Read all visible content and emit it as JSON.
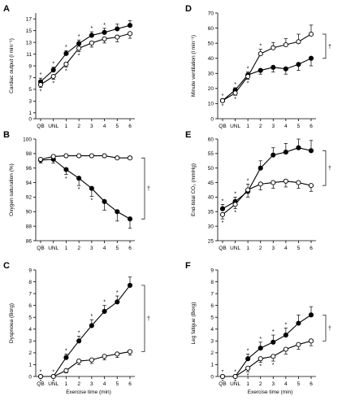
{
  "chart_data": [
    {
      "type": "line",
      "panel": "A",
      "ylabel": "Cardiac output (l min⁻¹)",
      "xlabel": "",
      "ylim": [
        0,
        18
      ],
      "yticks": [
        0,
        1,
        3,
        5,
        7,
        9,
        11,
        13,
        15,
        17
      ],
      "categories": [
        "QB",
        "UNL",
        "1",
        "2",
        "3",
        "4",
        "5",
        "6"
      ],
      "series": [
        {
          "marker": "filled",
          "values": [
            6.3,
            8.3,
            11.1,
            12.8,
            14.2,
            14.7,
            15.3,
            15.9
          ],
          "errors": [
            0.6,
            0.5,
            0.5,
            0.6,
            0.6,
            0.7,
            0.8,
            0.8
          ]
        },
        {
          "marker": "open",
          "values": [
            5.8,
            7.2,
            9.3,
            12.0,
            12.9,
            13.6,
            13.9,
            14.5
          ],
          "errors": [
            0.5,
            0.5,
            0.5,
            0.6,
            0.7,
            0.7,
            0.8,
            0.8
          ]
        }
      ],
      "sig_above": [
        "*",
        "*",
        "*",
        "*",
        "*",
        "*",
        "",
        ""
      ],
      "sig_below": [
        "*",
        "*",
        "*",
        "*",
        "",
        "",
        "",
        ""
      ],
      "dagger": ""
    },
    {
      "type": "line",
      "panel": "B",
      "ylabel": "Oxygen saturation (%)",
      "xlabel": "",
      "ylim": [
        86,
        100
      ],
      "yticks": [
        86,
        88,
        90,
        92,
        94,
        96,
        98,
        100
      ],
      "categories": [
        "QB",
        "UNL",
        "1",
        "2",
        "3",
        "4",
        "5",
        "6"
      ],
      "series": [
        {
          "marker": "filled",
          "values": [
            97.1,
            97.2,
            95.8,
            94.6,
            93.2,
            91.4,
            90.0,
            89.0
          ],
          "errors": [
            0.4,
            0.5,
            0.7,
            1.0,
            1.1,
            1.2,
            1.3,
            1.3
          ]
        },
        {
          "marker": "open",
          "values": [
            97.2,
            97.6,
            97.7,
            97.7,
            97.7,
            97.7,
            97.4,
            97.4
          ],
          "errors": [
            0.2,
            0.2,
            0.2,
            0.2,
            0.2,
            0.2,
            0.2,
            0.2
          ]
        }
      ],
      "sig_above": [
        "",
        "",
        "",
        "",
        "",
        "",
        "",
        ""
      ],
      "sig_below": [
        "",
        "",
        "*",
        "*",
        "*",
        "",
        "",
        ""
      ],
      "dagger": "†"
    },
    {
      "type": "line",
      "panel": "C",
      "ylabel": "Dyspnoea (Borg)",
      "xlabel": "Exercise time (min)",
      "ylim": [
        0,
        9
      ],
      "yticks": [
        0,
        1,
        2,
        3,
        4,
        5,
        6,
        7,
        8,
        9
      ],
      "categories": [
        "QB",
        "UNL",
        "1",
        "2",
        "3",
        "4",
        "5",
        "6"
      ],
      "series": [
        {
          "marker": "filled",
          "values": [
            0.0,
            0.0,
            1.6,
            3.0,
            4.3,
            5.5,
            6.3,
            7.7
          ],
          "errors": [
            0.1,
            0.1,
            0.3,
            0.4,
            0.5,
            0.5,
            0.5,
            0.7
          ]
        },
        {
          "marker": "open",
          "values": [
            0.0,
            0.0,
            0.5,
            1.3,
            1.4,
            1.7,
            1.9,
            2.1
          ],
          "errors": [
            0.1,
            0.1,
            0.2,
            0.3,
            0.3,
            0.3,
            0.3,
            0.3
          ]
        }
      ],
      "sig_above": [
        "*",
        "*",
        "*",
        "*",
        "*",
        "*",
        "*",
        ""
      ],
      "sig_below": [
        "*",
        "*",
        "",
        "",
        "",
        "",
        "",
        ""
      ],
      "dagger": "†"
    },
    {
      "type": "line",
      "panel": "D",
      "ylabel": "Minute ventilation (l min⁻¹)",
      "xlabel": "",
      "ylim": [
        0,
        70
      ],
      "yticks": [
        0,
        10,
        20,
        30,
        40,
        50,
        60,
        70
      ],
      "categories": [
        "QB",
        "UNL",
        "1",
        "2",
        "3",
        "4",
        "5",
        "6"
      ],
      "series": [
        {
          "marker": "filled",
          "values": [
            12.0,
            19.0,
            29.0,
            32.0,
            34.0,
            33.0,
            36.0,
            40.0
          ],
          "errors": [
            1.0,
            1.5,
            2.0,
            2.5,
            3.0,
            3.5,
            4.0,
            5.0
          ]
        },
        {
          "marker": "open",
          "values": [
            12.0,
            17.0,
            28.0,
            43.0,
            47.0,
            49.0,
            51.0,
            56.0
          ],
          "errors": [
            1.0,
            1.5,
            2.0,
            3.0,
            3.5,
            4.0,
            5.0,
            6.0
          ]
        }
      ],
      "sig_above": [
        "*",
        "*",
        "*",
        "*",
        "",
        "",
        "",
        ""
      ],
      "sig_below": [
        "*",
        "*",
        "*",
        "",
        "",
        "",
        "",
        ""
      ],
      "dagger": "†"
    },
    {
      "type": "line",
      "panel": "E",
      "ylabel": "End-tidal CO₂ (mmHg)",
      "xlabel": "",
      "ylim": [
        25,
        60
      ],
      "yticks": [
        25,
        30,
        35,
        40,
        45,
        50,
        55,
        60
      ],
      "categories": [
        "QB",
        "UNL",
        "1",
        "2",
        "3",
        "4",
        "5",
        "6"
      ],
      "series": [
        {
          "marker": "filled",
          "values": [
            36.0,
            38.5,
            42.0,
            50.0,
            54.5,
            55.5,
            57.0,
            56.0
          ],
          "errors": [
            1.5,
            1.5,
            2.0,
            2.5,
            2.5,
            3.0,
            3.0,
            3.5
          ]
        },
        {
          "marker": "open",
          "values": [
            34.0,
            37.5,
            42.5,
            44.5,
            45.0,
            45.5,
            45.0,
            44.0
          ],
          "errors": [
            1.5,
            1.5,
            2.0,
            2.0,
            2.0,
            2.0,
            2.0,
            2.0
          ]
        }
      ],
      "sig_above": [
        "*",
        "*",
        "*",
        "",
        "",
        "",
        "",
        ""
      ],
      "sig_below": [
        "*",
        "*",
        "",
        "",
        "",
        "",
        "",
        ""
      ],
      "dagger": "†"
    },
    {
      "type": "line",
      "panel": "F",
      "ylabel": "Leg fatigue (Borg)",
      "xlabel": "Exercise time (min)",
      "ylim": [
        0,
        9
      ],
      "yticks": [
        0,
        1,
        2,
        3,
        4,
        5,
        6,
        7,
        8,
        9
      ],
      "categories": [
        "QB",
        "UNL",
        "1",
        "2",
        "3",
        "4",
        "5",
        "6"
      ],
      "series": [
        {
          "marker": "filled",
          "values": [
            0.0,
            0.0,
            1.5,
            2.4,
            2.9,
            3.5,
            4.5,
            5.2
          ],
          "errors": [
            0.1,
            0.1,
            0.4,
            0.5,
            0.6,
            0.6,
            0.7,
            0.7
          ]
        },
        {
          "marker": "open",
          "values": [
            0.0,
            0.0,
            0.7,
            1.5,
            1.7,
            2.3,
            2.7,
            3.0
          ],
          "errors": [
            0.1,
            0.1,
            0.3,
            0.3,
            0.4,
            0.4,
            0.4,
            0.4
          ]
        }
      ],
      "sig_above": [
        "*",
        "*",
        "*",
        "*",
        "*",
        "*",
        "",
        ""
      ],
      "sig_below": [
        "*",
        "*",
        "*",
        "*",
        "*",
        "",
        "",
        ""
      ],
      "dagger": "†"
    }
  ]
}
